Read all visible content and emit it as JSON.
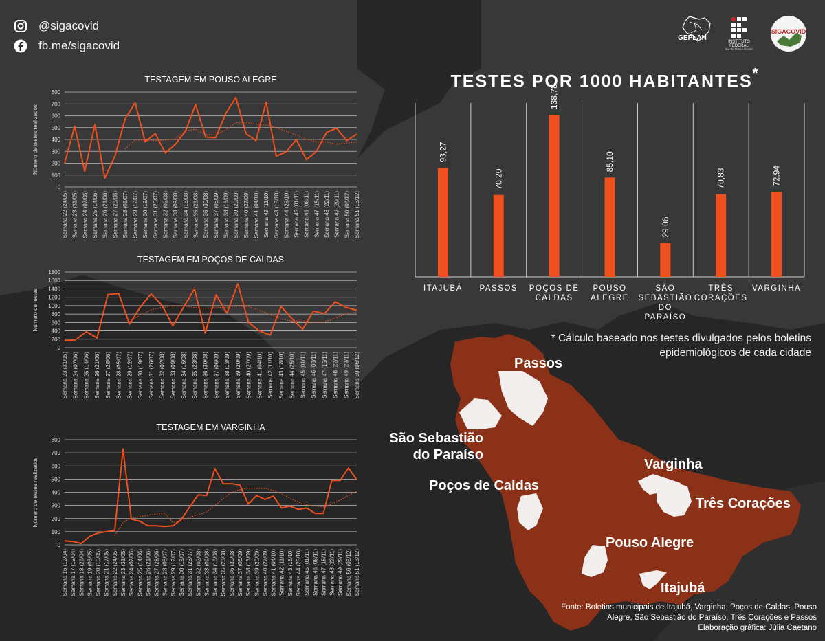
{
  "social": {
    "instagram": "@sigacovid",
    "facebook": "fb.me/sigacovid"
  },
  "logos": {
    "geplan": "GEPLAN",
    "if_line1": "INSTITUTO",
    "if_line2": "FEDERAL",
    "if_line3": "Sul de Minas Gerais",
    "siga": "SIGACOVID"
  },
  "colors": {
    "accent": "#f0501e",
    "map": "#8b3118",
    "background": "#262626"
  },
  "bar_title": "TESTES POR 1000 HABITANTES",
  "bar_title_mark": "*",
  "footnote_line1": "* Cálculo baseado nos testes divulgados pelos boletins",
  "footnote_line2": "epidemiológicos de cada cidade",
  "map_labels": {
    "passos": "Passos",
    "ssp1": "São Sebastião",
    "ssp2": "do Paraíso",
    "pocos": "Poços de Caldas",
    "varginha": "Varginha",
    "tres": "Três Corações",
    "pouso": "Pouso Alegre",
    "itajuba": "Itajubá"
  },
  "source_line1": "Fonte: Boletins municipais de Itajubá, Varginha, Poços de Caldas, Pouso",
  "source_line2": "Alegre, São Sebastião do Paraíso, Três Corações e Passos",
  "source_line3": "Elaboração gráfica: Júlia Caetano",
  "chart_data": [
    {
      "type": "line",
      "title": "TESTAGEM EM POUSO ALEGRE",
      "ylabel": "Número de testes realizados",
      "xlabel": "",
      "ylim": [
        0,
        800
      ],
      "yticks": [
        0,
        100,
        200,
        300,
        400,
        500,
        600,
        700,
        800
      ],
      "grid": true,
      "categories": [
        "Semana 22 (24/05)",
        "Semana 23 (31/05)",
        "Semana 24 (07/06)",
        "Semana 25 (14/06)",
        "Semana 26 (21/06)",
        "Semana 27 (28/06)",
        "Semana 28 (05/07)",
        "Semana 29 (12/07)",
        "Semana 30 (19/07)",
        "Semana 31 (26/07)",
        "Semana 32 (02/08)",
        "Semana 33 (09/08)",
        "Semana 34 (16/08)",
        "Semana 35 (23/08)",
        "Semana 36 (30/08)",
        "Semana 37 (06/09)",
        "Semana 38 (13/09)",
        "Semana 39 (20/09)",
        "Semana 40 (27/09)",
        "Semana 41 (04/10)",
        "Semana 42 (11/10)",
        "Semana 43 (18/10)",
        "Semana 44 (25/10)",
        "Semana 45 (01/11)",
        "Semana 46 (08/11)",
        "Semana 47 (15/11)",
        "Semana 48 (22/11)",
        "Semana 49 (29/11)",
        "Semana 50 (06/12)",
        "Semana 51 (13/12)"
      ],
      "series": [
        {
          "style": "solid",
          "values": [
            200,
            510,
            130,
            525,
            75,
            260,
            570,
            710,
            380,
            450,
            285,
            360,
            470,
            695,
            420,
            415,
            620,
            755,
            450,
            390,
            715,
            260,
            295,
            400,
            230,
            300,
            460,
            495,
            390,
            445
          ]
        },
        {
          "style": "dotted",
          "values": [
            null,
            null,
            null,
            null,
            null,
            null,
            320,
            395,
            395,
            390,
            395,
            405,
            475,
            485,
            440,
            440,
            480,
            540,
            545,
            530,
            520,
            500,
            470,
            440,
            400,
            380,
            380,
            360,
            370,
            380
          ]
        }
      ]
    },
    {
      "type": "line",
      "title": "TESTAGEM EM POÇOS DE CALDAS",
      "ylabel": "Número de testes",
      "xlabel": "",
      "ylim": [
        0,
        1800
      ],
      "yticks": [
        0,
        200,
        400,
        600,
        800,
        1000,
        1200,
        1400,
        1600,
        1800
      ],
      "grid": true,
      "categories": [
        "Semana 23 (31/05)",
        "Semana 24 (07/06)",
        "Semana 25 (14/06)",
        "Semana 26 (21/06)",
        "Semana 27 (28/06)",
        "Semana 28 (05/07)",
        "Semana 29 (12/07)",
        "Semana 30 (19/07)",
        "Semana 31 (26/07)",
        "Semana 32 (02/08)",
        "Semana 33 (09/08)",
        "Semana 34 (16/08)",
        "Semana 35 (23/08)",
        "Semana 36 (30/08)",
        "Semana 37 (06/09)",
        "Semana 38 (13/09)",
        "Semana 39 (20/09)",
        "Semana 40 (27/09)",
        "Semana 41 (04/10)",
        "Semana 42 (11/10)",
        "Semana 43 (18/10)",
        "Semana 44 (25/10)",
        "Semana 45 (01/11)",
        "Semana 46 (08/11)",
        "Semana 47 (15/11)",
        "Semana 48 (22/11)",
        "Semana 49 (29/11)",
        "Semana 50 (06/12)"
      ],
      "series": [
        {
          "style": "solid",
          "values": [
            170,
            185,
            380,
            230,
            1265,
            1290,
            560,
            970,
            1280,
            1010,
            520,
            960,
            1400,
            350,
            1260,
            820,
            1520,
            600,
            400,
            300,
            980,
            690,
            440,
            870,
            810,
            1090,
            960,
            890
          ]
        },
        {
          "style": "dotted",
          "values": [
            null,
            null,
            null,
            null,
            null,
            null,
            620,
            780,
            900,
            960,
            990,
            990,
            960,
            930,
            950,
            960,
            990,
            980,
            890,
            790,
            680,
            630,
            630,
            610,
            610,
            700,
            810,
            850
          ]
        }
      ]
    },
    {
      "type": "line",
      "title": "TESTAGEM EM VARGINHA",
      "ylabel": "Número de testes realizados",
      "xlabel": "",
      "ylim": [
        0,
        800
      ],
      "yticks": [
        0,
        100,
        200,
        300,
        400,
        500,
        600,
        700,
        800
      ],
      "grid": true,
      "categories": [
        "Semana 16 (12/04)",
        "Semana 17 (19/04)",
        "Semana 18 (26/04)",
        "Semana 19 (03/05)",
        "Semana 20 (10/05)",
        "Semana 21 (17/05)",
        "Semana 22 (24/05)",
        "Semana 23 (31/05)",
        "Semana 24 (07/06)",
        "Semana 25 (14/06)",
        "Semana 26 (21/06)",
        "Semana 27 (28/06)",
        "Semana 28 (05/07)",
        "Semana 29 (12/07)",
        "Semana 30 (19/07)",
        "Semana 31 (26/07)",
        "Semana 32 (02/08)",
        "Semana 33 (09/08)",
        "Semana 34 (16/08)",
        "Semana 35 (23/08)",
        "Semana 36 (30/08)",
        "Semana 37 (06/09)",
        "Semana 38 (13/09)",
        "Semana 39 (20/09)",
        "Semana 40 (27/09)",
        "Semana 41 (04/10)",
        "Semana 42 (11/10)",
        "Semana 43 (18/10)",
        "Semana 44 (25/10)",
        "Semana 45 (01/11)",
        "Semana 46 (08/11)",
        "Semana 47 (15/11)",
        "Semana 48 (22/11)",
        "Semana 49 (29/11)",
        "Semana 50 (06/12)",
        "Semana 51 (13/12)"
      ],
      "series": [
        {
          "style": "solid",
          "values": [
            30,
            25,
            10,
            65,
            90,
            100,
            110,
            730,
            195,
            180,
            145,
            145,
            140,
            145,
            195,
            290,
            380,
            375,
            580,
            465,
            465,
            455,
            310,
            375,
            345,
            370,
            280,
            295,
            270,
            280,
            240,
            240,
            490,
            490,
            585,
            495
          ]
        },
        {
          "style": "dotted",
          "values": [
            null,
            null,
            null,
            null,
            null,
            null,
            70,
            170,
            205,
            215,
            225,
            235,
            240,
            170,
            180,
            210,
            230,
            250,
            300,
            350,
            400,
            420,
            430,
            430,
            430,
            415,
            390,
            355,
            325,
            305,
            295,
            290,
            310,
            340,
            375,
            410
          ]
        }
      ]
    },
    {
      "type": "bar",
      "title": "TESTES POR 1000 HABITANTES",
      "categories": [
        "ITAJUBÁ",
        "PASSOS",
        "POÇOS DE CALDAS",
        "POUSO ALEGRE",
        "SÃO SEBASTIÃO DO PARAÍSO",
        "TRÊS CORAÇÕES",
        "VARGINHA"
      ],
      "values": [
        93.27,
        70.2,
        138.78,
        85.1,
        29.06,
        70.83,
        72.94
      ],
      "value_labels": [
        "93,27",
        "70,20",
        "138,78",
        "85,10",
        "29,06",
        "70,83",
        "72,94"
      ]
    }
  ]
}
